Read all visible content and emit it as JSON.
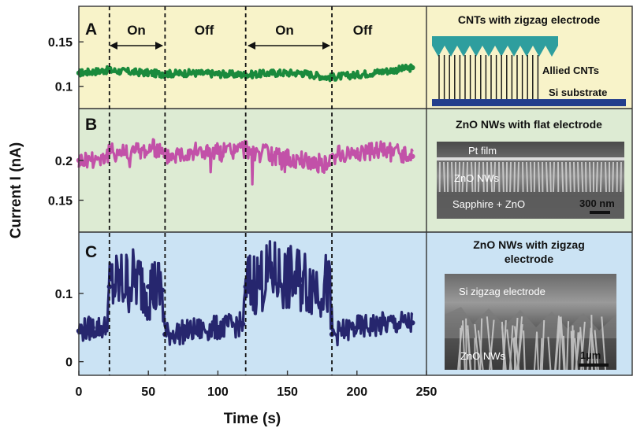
{
  "chart_data": {
    "type": "scatter",
    "xlabel": "Time (s)",
    "ylabel": "Current I (nA)",
    "xlim": [
      0,
      250
    ],
    "xticks": [
      "0",
      "50",
      "100",
      "150",
      "200",
      "250"
    ],
    "switch_times": [
      22,
      62,
      120,
      182
    ],
    "intervals": [
      "On",
      "Off",
      "On",
      "Off"
    ],
    "panels": [
      {
        "label": "A",
        "bg": "#f8f3c9",
        "color": "#1a8a3c",
        "ylim": [
          0.075,
          0.19
        ],
        "yticks": [
          {
            "v": 0.15,
            "t": "0.15"
          },
          {
            "v": 0.1,
            "t": "0.1"
          }
        ],
        "series": {
          "x": [
            0,
            20,
            40,
            60,
            80,
            100,
            120,
            140,
            160,
            180,
            200,
            220,
            240
          ],
          "y": [
            0.115,
            0.118,
            0.116,
            0.114,
            0.115,
            0.114,
            0.113,
            0.115,
            0.115,
            0.11,
            0.113,
            0.117,
            0.121
          ]
        },
        "annotation": {
          "title": "CNTs with zigzag electrode",
          "label1": "Allied CNTs",
          "label2": "Si substrate"
        }
      },
      {
        "label": "B",
        "bg": "#ddebd3",
        "color": "#c251a8",
        "ylim": [
          0.11,
          0.265
        ],
        "yticks": [
          {
            "v": 0.2,
            "t": "0.2"
          },
          {
            "v": 0.15,
            "t": "0.15"
          }
        ],
        "series": {
          "x": [
            0,
            20,
            22,
            40,
            55,
            60,
            62,
            80,
            100,
            120,
            140,
            160,
            180,
            182,
            200,
            220,
            240
          ],
          "y": [
            0.2,
            0.205,
            0.21,
            0.212,
            0.215,
            0.21,
            0.205,
            0.212,
            0.21,
            0.215,
            0.205,
            0.2,
            0.195,
            0.205,
            0.21,
            0.212,
            0.205
          ]
        },
        "annotation": {
          "title": "ZnO NWs with flat electrode",
          "label1": "Pt film",
          "label2": "ZnO NWs",
          "label3": "Sapphire + ZnO",
          "scale": "300 nm"
        }
      },
      {
        "label": "C",
        "bg": "#cbe3f4",
        "color": "#26266e",
        "ylim": [
          -0.02,
          0.19
        ],
        "yticks": [
          {
            "v": 0.1,
            "t": "0.1"
          },
          {
            "v": 0,
            "t": "0"
          }
        ],
        "series": {
          "x": [
            0,
            10,
            20,
            22,
            30,
            40,
            50,
            60,
            62,
            80,
            100,
            118,
            120,
            130,
            140,
            150,
            160,
            170,
            180,
            182,
            200,
            220,
            240
          ],
          "y": [
            0.045,
            0.05,
            0.05,
            0.11,
            0.115,
            0.12,
            0.11,
            0.105,
            0.04,
            0.045,
            0.05,
            0.055,
            0.11,
            0.12,
            0.13,
            0.12,
            0.12,
            0.115,
            0.11,
            0.04,
            0.05,
            0.055,
            0.057
          ]
        },
        "annotation": {
          "title1": "ZnO NWs with zigzag",
          "title2": "electrode",
          "label1": "Si zigzag electrode",
          "label2": "ZnO NWs",
          "scale": "1µm"
        }
      }
    ]
  }
}
